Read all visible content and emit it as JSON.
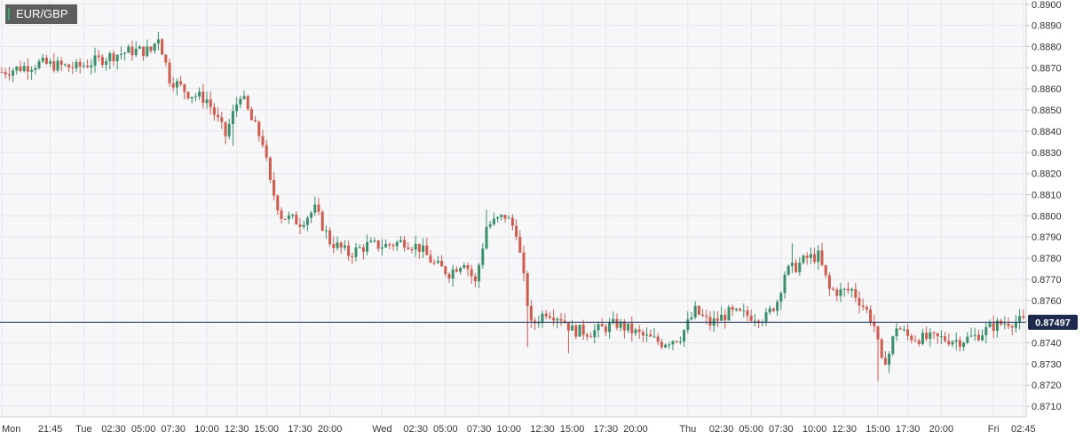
{
  "symbol": "EUR/GBP",
  "price_label": "0.87497",
  "colors": {
    "up": "#3a8f6a",
    "down": "#cf5b4e",
    "price_line": "#23355f",
    "price_tag_bg": "#1d2a4d",
    "grid": "#e6e6ea",
    "plot_bg": "#f7f7f9"
  },
  "chart_data": {
    "type": "candlestick",
    "title": "EUR/GBP",
    "ylim": [
      0.8705,
      0.8902
    ],
    "y_ticks": [
      "0.8710",
      "0.8720",
      "0.8730",
      "0.8740",
      "0.8750",
      "0.8760",
      "0.8770",
      "0.8780",
      "0.8790",
      "0.8800",
      "0.8810",
      "0.8820",
      "0.8830",
      "0.8840",
      "0.8850",
      "0.8860",
      "0.8870",
      "0.8880",
      "0.8890",
      "0.8900"
    ],
    "x_ticks": [
      "Mon",
      "21:45",
      "Tue",
      "02:30",
      "05:00",
      "07:30",
      "10:00",
      "12:30",
      "15:00",
      "17:30",
      "20:00",
      "Wed",
      "02:30",
      "05:00",
      "07:30",
      "10:00",
      "12:30",
      "15:00",
      "17:30",
      "20:00",
      "Thu",
      "02:30",
      "05:00",
      "07:30",
      "10:00",
      "12:30",
      "15:00",
      "17:30",
      "20:00",
      "Fri",
      "02:45"
    ],
    "x_tick_index": [
      0,
      13,
      22,
      30,
      38,
      46,
      55,
      63,
      71,
      80,
      88,
      102,
      111,
      119,
      128,
      136,
      145,
      153,
      162,
      170,
      184,
      193,
      201,
      209,
      218,
      226,
      235,
      243,
      252,
      266,
      274
    ],
    "last_price": 0.87497,
    "grid": true,
    "anchors": [
      [
        0,
        0.8868
      ],
      [
        10,
        0.8872
      ],
      [
        20,
        0.887
      ],
      [
        30,
        0.8876
      ],
      [
        35,
        0.8878
      ],
      [
        40,
        0.8878
      ],
      [
        42,
        0.8885
      ],
      [
        45,
        0.8865
      ],
      [
        50,
        0.8858
      ],
      [
        55,
        0.8855
      ],
      [
        60,
        0.8838
      ],
      [
        64,
        0.8858
      ],
      [
        67,
        0.8845
      ],
      [
        70,
        0.8835
      ],
      [
        72,
        0.8815
      ],
      [
        75,
        0.88
      ],
      [
        80,
        0.8797
      ],
      [
        84,
        0.8803
      ],
      [
        88,
        0.8788
      ],
      [
        93,
        0.8782
      ],
      [
        98,
        0.8786
      ],
      [
        103,
        0.8786
      ],
      [
        108,
        0.8788
      ],
      [
        112,
        0.8785
      ],
      [
        116,
        0.8777
      ],
      [
        120,
        0.8773
      ],
      [
        124,
        0.8779
      ],
      [
        127,
        0.8768
      ],
      [
        130,
        0.8795
      ],
      [
        135,
        0.88
      ],
      [
        138,
        0.8793
      ],
      [
        140,
        0.877
      ],
      [
        142,
        0.8748
      ],
      [
        146,
        0.8755
      ],
      [
        150,
        0.8752
      ],
      [
        153,
        0.8746
      ],
      [
        158,
        0.8745
      ],
      [
        165,
        0.8749
      ],
      [
        172,
        0.8743
      ],
      [
        177,
        0.874
      ],
      [
        182,
        0.8743
      ],
      [
        186,
        0.8755
      ],
      [
        190,
        0.8749
      ],
      [
        195,
        0.8754
      ],
      [
        200,
        0.8753
      ],
      [
        205,
        0.8752
      ],
      [
        208,
        0.876
      ],
      [
        210,
        0.8773
      ],
      [
        213,
        0.8776
      ],
      [
        216,
        0.878
      ],
      [
        219,
        0.8781
      ],
      [
        222,
        0.8765
      ],
      [
        225,
        0.8764
      ],
      [
        228,
        0.8765
      ],
      [
        232,
        0.8755
      ],
      [
        234,
        0.8748
      ],
      [
        236,
        0.873
      ],
      [
        238,
        0.8735
      ],
      [
        240,
        0.8748
      ],
      [
        243,
        0.8743
      ],
      [
        247,
        0.8742
      ],
      [
        252,
        0.8742
      ],
      [
        257,
        0.8741
      ],
      [
        261,
        0.8743
      ],
      [
        266,
        0.8748
      ],
      [
        270,
        0.875
      ],
      [
        275,
        0.875
      ]
    ],
    "spikes": [
      {
        "i": 42,
        "high": 0.8887
      },
      {
        "i": 62,
        "low": 0.8833
      },
      {
        "i": 141,
        "low": 0.8738
      },
      {
        "i": 152,
        "low": 0.8735
      },
      {
        "i": 212,
        "high": 0.8787
      },
      {
        "i": 235,
        "low": 0.8722
      },
      {
        "i": 130,
        "high": 0.8803
      },
      {
        "i": 18,
        "low": 0.8868
      }
    ]
  }
}
